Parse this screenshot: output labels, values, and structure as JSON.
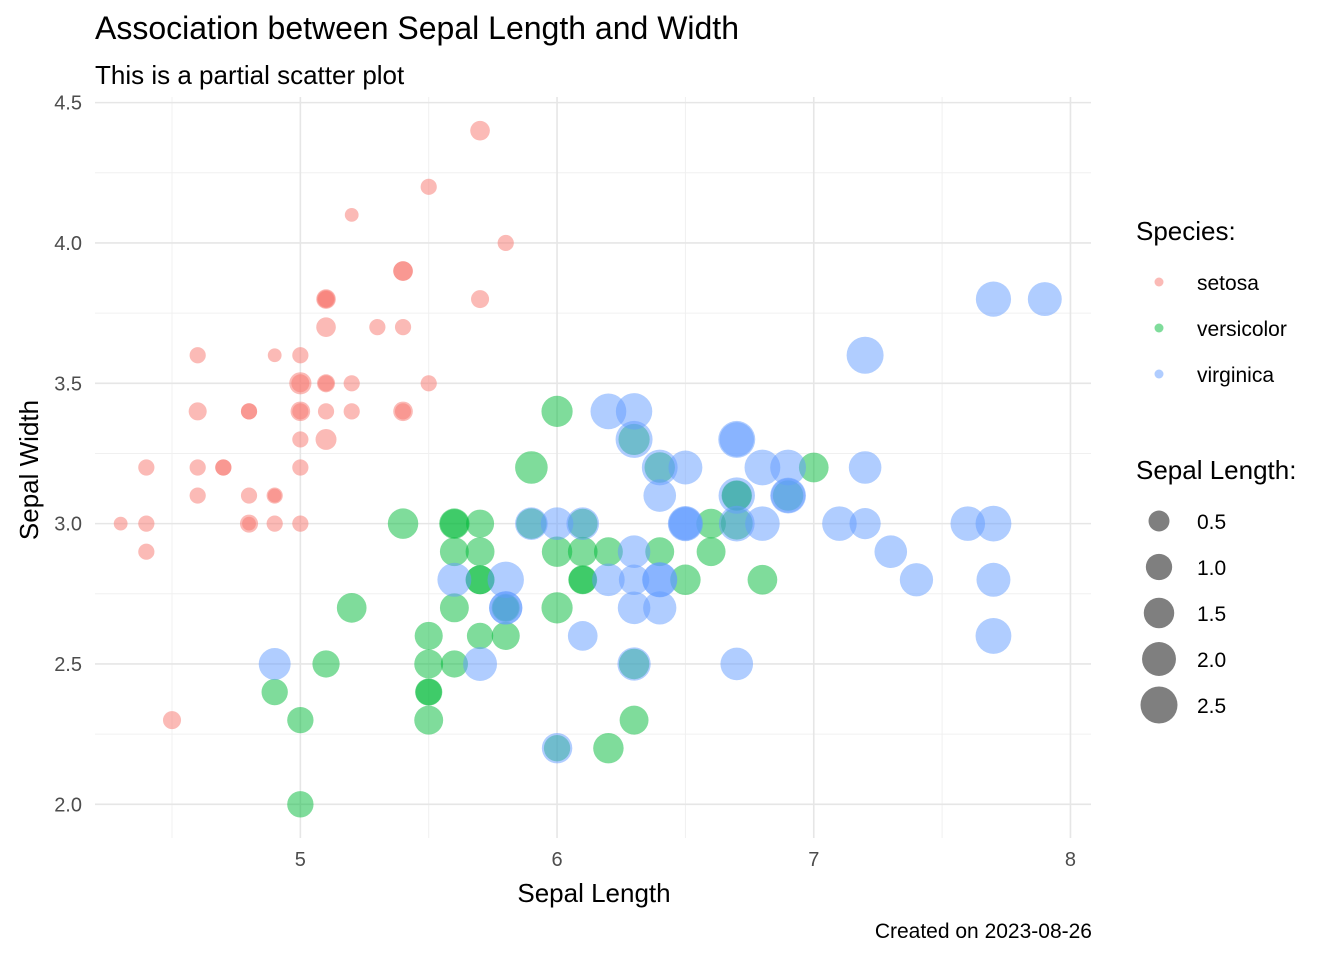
{
  "chart_data": {
    "type": "scatter",
    "title": "Association between Sepal Length and Width",
    "subtitle": "This is a partial scatter plot",
    "caption": "Created on 2023-08-26",
    "xlabel": "Sepal Length",
    "ylabel": "Sepal Width",
    "xlim": [
      4.2,
      8.08
    ],
    "ylim": [
      1.88,
      4.52
    ],
    "xticks": [
      5,
      6,
      7,
      8
    ],
    "yticks": [
      2.0,
      2.5,
      3.0,
      3.5,
      4.0,
      4.5
    ],
    "grid": true,
    "legend_position": "right",
    "color_legend": {
      "title": "Species:",
      "items": [
        {
          "name": "setosa",
          "color": "#F8766D"
        },
        {
          "name": "versicolor",
          "color": "#00BA38"
        },
        {
          "name": "virginica",
          "color": "#619CFF"
        }
      ]
    },
    "size_legend": {
      "title": "Sepal Length:",
      "values": [
        0.5,
        1.0,
        1.5,
        2.0,
        2.5
      ]
    },
    "series": [
      {
        "name": "setosa",
        "color": "#F8766D",
        "points": [
          {
            "x": 5.1,
            "y": 3.5,
            "size": 0.2
          },
          {
            "x": 4.9,
            "y": 3.0,
            "size": 0.2
          },
          {
            "x": 4.7,
            "y": 3.2,
            "size": 0.2
          },
          {
            "x": 4.6,
            "y": 3.1,
            "size": 0.2
          },
          {
            "x": 5.0,
            "y": 3.6,
            "size": 0.2
          },
          {
            "x": 5.4,
            "y": 3.9,
            "size": 0.4
          },
          {
            "x": 4.6,
            "y": 3.4,
            "size": 0.3
          },
          {
            "x": 5.0,
            "y": 3.4,
            "size": 0.2
          },
          {
            "x": 4.4,
            "y": 2.9,
            "size": 0.2
          },
          {
            "x": 4.9,
            "y": 3.1,
            "size": 0.1
          },
          {
            "x": 5.4,
            "y": 3.7,
            "size": 0.2
          },
          {
            "x": 4.8,
            "y": 3.4,
            "size": 0.2
          },
          {
            "x": 4.8,
            "y": 3.0,
            "size": 0.1
          },
          {
            "x": 4.3,
            "y": 3.0,
            "size": 0.1
          },
          {
            "x": 5.8,
            "y": 4.0,
            "size": 0.2
          },
          {
            "x": 5.7,
            "y": 4.4,
            "size": 0.4
          },
          {
            "x": 5.4,
            "y": 3.9,
            "size": 0.4
          },
          {
            "x": 5.1,
            "y": 3.5,
            "size": 0.3
          },
          {
            "x": 5.7,
            "y": 3.8,
            "size": 0.3
          },
          {
            "x": 5.1,
            "y": 3.8,
            "size": 0.3
          },
          {
            "x": 5.4,
            "y": 3.4,
            "size": 0.2
          },
          {
            "x": 5.1,
            "y": 3.7,
            "size": 0.4
          },
          {
            "x": 4.6,
            "y": 3.6,
            "size": 0.2
          },
          {
            "x": 5.1,
            "y": 3.3,
            "size": 0.5
          },
          {
            "x": 4.8,
            "y": 3.4,
            "size": 0.2
          },
          {
            "x": 5.0,
            "y": 3.0,
            "size": 0.2
          },
          {
            "x": 5.0,
            "y": 3.4,
            "size": 0.4
          },
          {
            "x": 5.2,
            "y": 3.5,
            "size": 0.2
          },
          {
            "x": 5.2,
            "y": 3.4,
            "size": 0.2
          },
          {
            "x": 4.7,
            "y": 3.2,
            "size": 0.2
          },
          {
            "x": 4.8,
            "y": 3.1,
            "size": 0.2
          },
          {
            "x": 5.4,
            "y": 3.4,
            "size": 0.4
          },
          {
            "x": 5.2,
            "y": 4.1,
            "size": 0.1
          },
          {
            "x": 5.5,
            "y": 4.2,
            "size": 0.2
          },
          {
            "x": 4.9,
            "y": 3.1,
            "size": 0.2
          },
          {
            "x": 5.0,
            "y": 3.2,
            "size": 0.2
          },
          {
            "x": 5.5,
            "y": 3.5,
            "size": 0.2
          },
          {
            "x": 4.9,
            "y": 3.6,
            "size": 0.1
          },
          {
            "x": 4.4,
            "y": 3.0,
            "size": 0.2
          },
          {
            "x": 5.1,
            "y": 3.4,
            "size": 0.2
          },
          {
            "x": 5.0,
            "y": 3.5,
            "size": 0.3
          },
          {
            "x": 4.5,
            "y": 2.3,
            "size": 0.3
          },
          {
            "x": 4.4,
            "y": 3.2,
            "size": 0.2
          },
          {
            "x": 5.0,
            "y": 3.5,
            "size": 0.6
          },
          {
            "x": 5.1,
            "y": 3.8,
            "size": 0.4
          },
          {
            "x": 4.8,
            "y": 3.0,
            "size": 0.3
          },
          {
            "x": 5.1,
            "y": 3.8,
            "size": 0.2
          },
          {
            "x": 4.6,
            "y": 3.2,
            "size": 0.2
          },
          {
            "x": 5.3,
            "y": 3.7,
            "size": 0.2
          },
          {
            "x": 5.0,
            "y": 3.3,
            "size": 0.2
          }
        ]
      },
      {
        "name": "versicolor",
        "color": "#00BA38",
        "points": [
          {
            "x": 7.0,
            "y": 3.2,
            "size": 1.4
          },
          {
            "x": 6.4,
            "y": 3.2,
            "size": 1.5
          },
          {
            "x": 6.9,
            "y": 3.1,
            "size": 1.5
          },
          {
            "x": 5.5,
            "y": 2.3,
            "size": 1.3
          },
          {
            "x": 6.5,
            "y": 2.8,
            "size": 1.5
          },
          {
            "x": 5.7,
            "y": 2.8,
            "size": 1.3
          },
          {
            "x": 6.3,
            "y": 3.3,
            "size": 1.6
          },
          {
            "x": 4.9,
            "y": 2.4,
            "size": 1.0
          },
          {
            "x": 6.6,
            "y": 2.9,
            "size": 1.3
          },
          {
            "x": 5.2,
            "y": 2.7,
            "size": 1.4
          },
          {
            "x": 5.0,
            "y": 2.0,
            "size": 1.0
          },
          {
            "x": 5.9,
            "y": 3.0,
            "size": 1.5
          },
          {
            "x": 6.0,
            "y": 2.2,
            "size": 1.0
          },
          {
            "x": 6.1,
            "y": 2.9,
            "size": 1.4
          },
          {
            "x": 5.6,
            "y": 2.9,
            "size": 1.3
          },
          {
            "x": 6.7,
            "y": 3.1,
            "size": 1.4
          },
          {
            "x": 5.6,
            "y": 3.0,
            "size": 1.5
          },
          {
            "x": 5.8,
            "y": 2.7,
            "size": 1.0
          },
          {
            "x": 6.2,
            "y": 2.2,
            "size": 1.5
          },
          {
            "x": 5.6,
            "y": 2.5,
            "size": 1.1
          },
          {
            "x": 5.9,
            "y": 3.2,
            "size": 1.8
          },
          {
            "x": 6.1,
            "y": 2.8,
            "size": 1.3
          },
          {
            "x": 6.3,
            "y": 2.5,
            "size": 1.5
          },
          {
            "x": 6.1,
            "y": 2.8,
            "size": 1.2
          },
          {
            "x": 6.4,
            "y": 2.9,
            "size": 1.3
          },
          {
            "x": 6.6,
            "y": 3.0,
            "size": 1.4
          },
          {
            "x": 6.8,
            "y": 2.8,
            "size": 1.4
          },
          {
            "x": 6.7,
            "y": 3.0,
            "size": 1.7
          },
          {
            "x": 6.0,
            "y": 2.9,
            "size": 1.5
          },
          {
            "x": 5.7,
            "y": 2.6,
            "size": 1.0
          },
          {
            "x": 5.5,
            "y": 2.4,
            "size": 1.1
          },
          {
            "x": 5.5,
            "y": 2.4,
            "size": 1.0
          },
          {
            "x": 5.8,
            "y": 2.7,
            "size": 1.2
          },
          {
            "x": 6.0,
            "y": 2.7,
            "size": 1.6
          },
          {
            "x": 5.4,
            "y": 3.0,
            "size": 1.5
          },
          {
            "x": 6.0,
            "y": 3.4,
            "size": 1.6
          },
          {
            "x": 6.7,
            "y": 3.1,
            "size": 1.5
          },
          {
            "x": 6.3,
            "y": 2.3,
            "size": 1.3
          },
          {
            "x": 5.6,
            "y": 3.0,
            "size": 1.3
          },
          {
            "x": 5.5,
            "y": 2.5,
            "size": 1.3
          },
          {
            "x": 5.5,
            "y": 2.6,
            "size": 1.2
          },
          {
            "x": 6.1,
            "y": 3.0,
            "size": 1.4
          },
          {
            "x": 5.8,
            "y": 2.6,
            "size": 1.2
          },
          {
            "x": 5.0,
            "y": 2.3,
            "size": 1.0
          },
          {
            "x": 5.6,
            "y": 2.7,
            "size": 1.3
          },
          {
            "x": 5.7,
            "y": 3.0,
            "size": 1.2
          },
          {
            "x": 5.7,
            "y": 2.9,
            "size": 1.3
          },
          {
            "x": 6.2,
            "y": 2.9,
            "size": 1.3
          },
          {
            "x": 5.1,
            "y": 2.5,
            "size": 1.1
          },
          {
            "x": 5.7,
            "y": 2.8,
            "size": 1.3
          }
        ]
      },
      {
        "name": "virginica",
        "color": "#619CFF",
        "points": [
          {
            "x": 6.3,
            "y": 3.3,
            "size": 2.5
          },
          {
            "x": 5.8,
            "y": 2.7,
            "size": 1.9
          },
          {
            "x": 7.1,
            "y": 3.0,
            "size": 2.1
          },
          {
            "x": 6.3,
            "y": 2.9,
            "size": 1.8
          },
          {
            "x": 6.5,
            "y": 3.0,
            "size": 2.2
          },
          {
            "x": 7.6,
            "y": 3.0,
            "size": 2.1
          },
          {
            "x": 4.9,
            "y": 2.5,
            "size": 1.7
          },
          {
            "x": 7.3,
            "y": 2.9,
            "size": 1.8
          },
          {
            "x": 6.7,
            "y": 2.5,
            "size": 1.8
          },
          {
            "x": 7.2,
            "y": 3.6,
            "size": 2.5
          },
          {
            "x": 6.5,
            "y": 3.2,
            "size": 2.0
          },
          {
            "x": 6.4,
            "y": 2.7,
            "size": 1.9
          },
          {
            "x": 6.8,
            "y": 3.0,
            "size": 2.1
          },
          {
            "x": 5.7,
            "y": 2.5,
            "size": 2.0
          },
          {
            "x": 5.8,
            "y": 2.8,
            "size": 2.4
          },
          {
            "x": 6.4,
            "y": 3.2,
            "size": 2.3
          },
          {
            "x": 6.5,
            "y": 3.0,
            "size": 1.8
          },
          {
            "x": 7.7,
            "y": 3.8,
            "size": 2.2
          },
          {
            "x": 7.7,
            "y": 2.6,
            "size": 2.3
          },
          {
            "x": 6.0,
            "y": 2.2,
            "size": 1.5
          },
          {
            "x": 6.9,
            "y": 3.2,
            "size": 2.3
          },
          {
            "x": 5.6,
            "y": 2.8,
            "size": 2.0
          },
          {
            "x": 7.7,
            "y": 2.8,
            "size": 2.0
          },
          {
            "x": 6.3,
            "y": 2.7,
            "size": 1.8
          },
          {
            "x": 6.7,
            "y": 3.3,
            "size": 2.1
          },
          {
            "x": 7.2,
            "y": 3.2,
            "size": 1.8
          },
          {
            "x": 6.2,
            "y": 2.8,
            "size": 1.8
          },
          {
            "x": 6.1,
            "y": 3.0,
            "size": 1.8
          },
          {
            "x": 6.4,
            "y": 2.8,
            "size": 2.1
          },
          {
            "x": 7.2,
            "y": 3.0,
            "size": 1.6
          },
          {
            "x": 7.4,
            "y": 2.8,
            "size": 1.9
          },
          {
            "x": 7.9,
            "y": 3.8,
            "size": 2.0
          },
          {
            "x": 6.4,
            "y": 2.8,
            "size": 2.2
          },
          {
            "x": 6.3,
            "y": 2.8,
            "size": 1.5
          },
          {
            "x": 6.1,
            "y": 2.6,
            "size": 1.4
          },
          {
            "x": 7.7,
            "y": 3.0,
            "size": 2.3
          },
          {
            "x": 6.3,
            "y": 3.4,
            "size": 2.4
          },
          {
            "x": 6.4,
            "y": 3.1,
            "size": 1.8
          },
          {
            "x": 6.0,
            "y": 3.0,
            "size": 1.8
          },
          {
            "x": 6.9,
            "y": 3.1,
            "size": 2.1
          },
          {
            "x": 6.7,
            "y": 3.1,
            "size": 2.4
          },
          {
            "x": 6.9,
            "y": 3.1,
            "size": 2.3
          },
          {
            "x": 5.8,
            "y": 2.7,
            "size": 1.9
          },
          {
            "x": 6.8,
            "y": 3.2,
            "size": 2.3
          },
          {
            "x": 6.7,
            "y": 3.3,
            "size": 2.5
          },
          {
            "x": 6.7,
            "y": 3.0,
            "size": 2.3
          },
          {
            "x": 6.3,
            "y": 2.5,
            "size": 1.9
          },
          {
            "x": 6.5,
            "y": 3.0,
            "size": 2.0
          },
          {
            "x": 6.2,
            "y": 3.4,
            "size": 2.3
          },
          {
            "x": 5.9,
            "y": 3.0,
            "size": 1.8
          }
        ]
      }
    ]
  }
}
